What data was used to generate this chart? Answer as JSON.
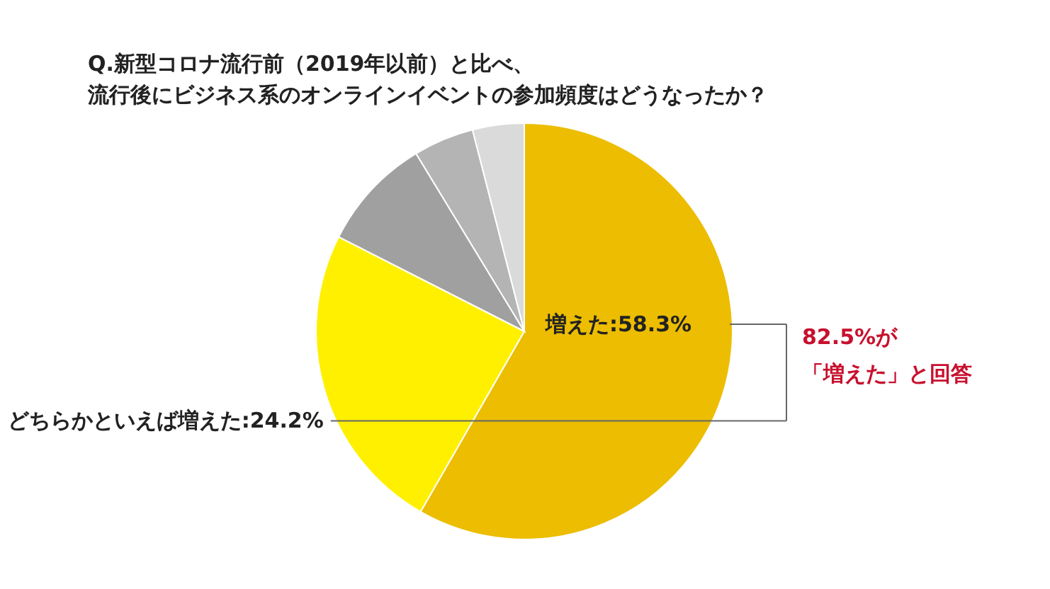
{
  "chart_data": {
    "type": "pie",
    "title": "Q.新型コロナ流行前（2019年以前）と比べ、",
    "subtitle": "流行後にビジネス系のオンラインイベントの参加頻度はどうなったか？",
    "categories": [
      null,
      null,
      null,
      null,
      null
    ],
    "values": [
      58.3,
      24.2,
      8.8,
      4.7,
      4.0
    ],
    "colors": [
      "#ecbd00",
      "#fff000",
      "#a0a0a0",
      "#b4b4b4",
      "#dadada"
    ],
    "value_labels": [
      "増えた:58.3%",
      "どちらかといえば増えた:24.2%",
      null,
      null,
      null
    ],
    "annotations": [
      "82.5%が",
      "「増えた」と回答"
    ]
  }
}
